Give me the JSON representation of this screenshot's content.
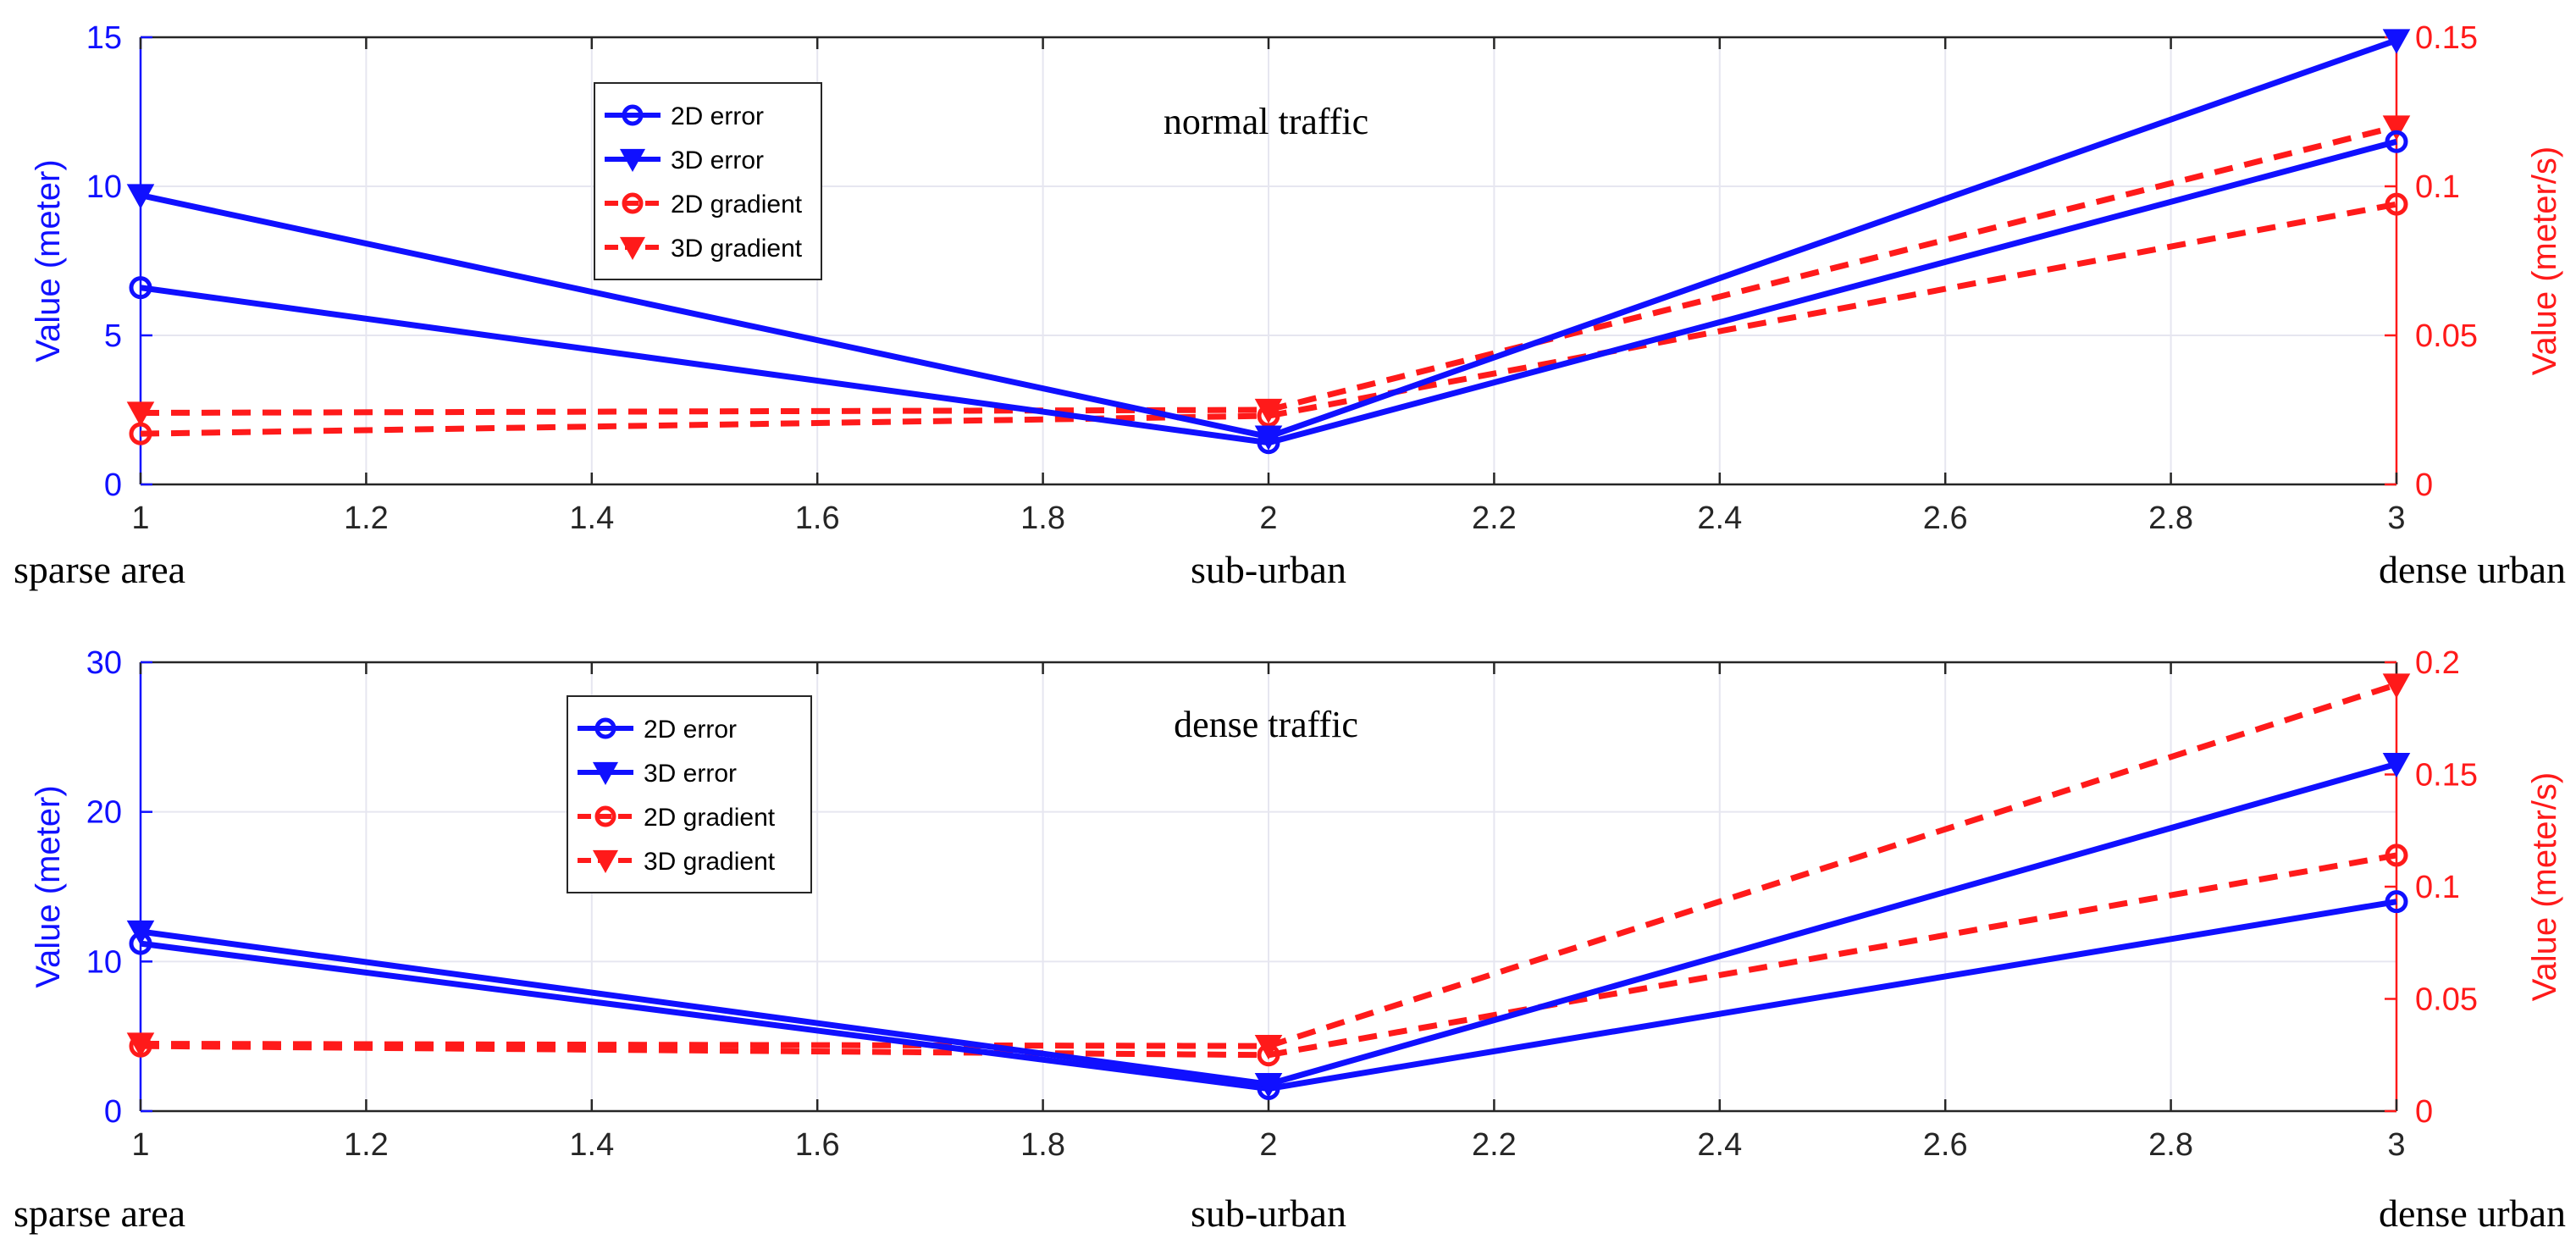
{
  "colors": {
    "error": "#1010ff",
    "gradient": "#ff1a1a",
    "axis": "#262626",
    "grid": "#e6e6f0"
  },
  "chart_data": [
    {
      "type": "line",
      "title": "normal traffic",
      "x": [
        1,
        2,
        3
      ],
      "xlim": [
        1,
        3
      ],
      "xticks": [
        "1",
        "1.2",
        "1.4",
        "1.6",
        "1.8",
        "2",
        "2.2",
        "2.4",
        "2.6",
        "2.8",
        "3"
      ],
      "category_labels": [
        "sparse area",
        "sub-urban",
        "dense urban"
      ],
      "ylabel_left": "Value (meter)",
      "ylim_left": [
        0,
        15
      ],
      "yticks_left": [
        "0",
        "5",
        "10",
        "15"
      ],
      "ylabel_right": "Value (meter/s)",
      "ylim_right": [
        0,
        0.15
      ],
      "yticks_right": [
        "0",
        "0.05",
        "0.1",
        "0.15"
      ],
      "grid": true,
      "legend_position": "upper-left",
      "series": [
        {
          "name": "2D error",
          "axis": "left",
          "marker": "circle",
          "style": "solid",
          "values": [
            6.6,
            1.4,
            11.5
          ]
        },
        {
          "name": "3D error",
          "axis": "left",
          "marker": "triangle-down",
          "style": "solid",
          "values": [
            9.7,
            1.6,
            14.9
          ]
        },
        {
          "name": "2D gradient",
          "axis": "right",
          "marker": "circle",
          "style": "dashed",
          "values": [
            0.017,
            0.023,
            0.094
          ]
        },
        {
          "name": "3D gradient",
          "axis": "right",
          "marker": "triangle-down",
          "style": "dashed",
          "values": [
            0.024,
            0.025,
            0.12
          ]
        }
      ]
    },
    {
      "type": "line",
      "title": "dense traffic",
      "x": [
        1,
        2,
        3
      ],
      "xlim": [
        1,
        3
      ],
      "xticks": [
        "1",
        "1.2",
        "1.4",
        "1.6",
        "1.8",
        "2",
        "2.2",
        "2.4",
        "2.6",
        "2.8",
        "3"
      ],
      "category_labels": [
        "sparse area",
        "sub-urban",
        "dense urban"
      ],
      "ylabel_left": "Value (meter)",
      "ylim_left": [
        0,
        30
      ],
      "yticks_left": [
        "0",
        "10",
        "20",
        "30"
      ],
      "ylabel_right": "Value (meter/s)",
      "ylim_right": [
        0,
        0.2
      ],
      "yticks_right": [
        "0",
        "0.05",
        "0.1",
        "0.15",
        "0.2"
      ],
      "grid": true,
      "legend_position": "upper-left",
      "series": [
        {
          "name": "2D error",
          "axis": "left",
          "marker": "circle",
          "style": "solid",
          "values": [
            11.2,
            1.5,
            14.0
          ]
        },
        {
          "name": "3D error",
          "axis": "left",
          "marker": "triangle-down",
          "style": "solid",
          "values": [
            12.0,
            1.8,
            23.2
          ]
        },
        {
          "name": "2D gradient",
          "axis": "right",
          "marker": "circle",
          "style": "dashed",
          "values": [
            0.029,
            0.025,
            0.114
          ]
        },
        {
          "name": "3D gradient",
          "axis": "right",
          "marker": "triangle-down",
          "style": "dashed",
          "values": [
            0.03,
            0.029,
            0.19
          ]
        }
      ]
    }
  ]
}
